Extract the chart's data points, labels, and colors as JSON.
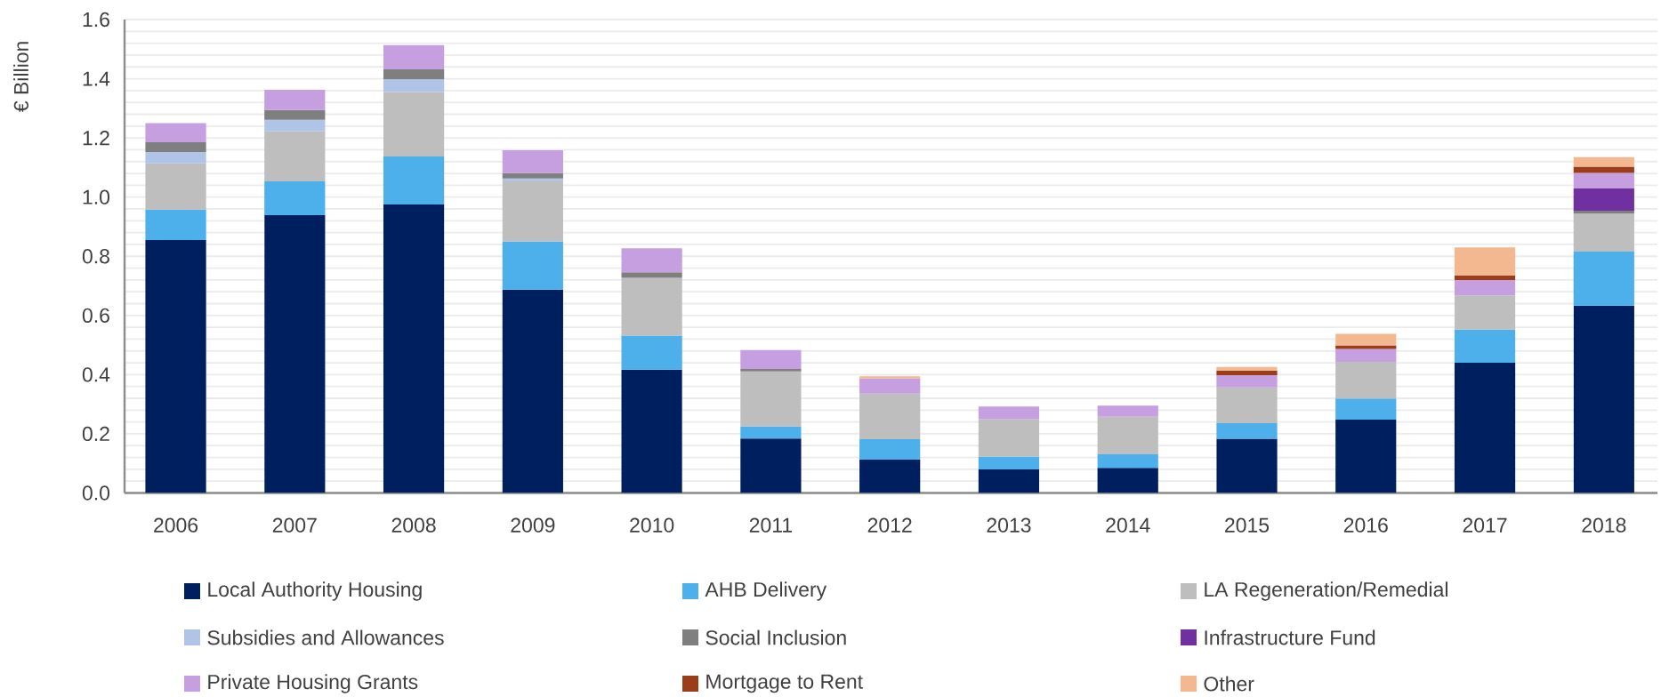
{
  "chart_data": {
    "type": "bar",
    "stacked": true,
    "ylabel": "€ Billion",
    "categories": [
      "2006",
      "2007",
      "2008",
      "2009",
      "2010",
      "2011",
      "2012",
      "2013",
      "2014",
      "2015",
      "2016",
      "2017",
      "2018"
    ],
    "series": [
      {
        "name": "Local Authority Housing",
        "color": "#001f5f",
        "values": [
          0.855,
          0.939,
          0.975,
          0.687,
          0.417,
          0.184,
          0.113,
          0.08,
          0.085,
          0.183,
          0.248,
          0.44,
          0.633
        ]
      },
      {
        "name": "AHB Delivery",
        "color": "#4db0ea",
        "values": [
          0.103,
          0.114,
          0.162,
          0.163,
          0.115,
          0.041,
          0.069,
          0.043,
          0.046,
          0.053,
          0.071,
          0.112,
          0.183
        ]
      },
      {
        "name": "LA Regeneration/Remedial",
        "color": "#bebebe",
        "values": [
          0.156,
          0.169,
          0.218,
          0.203,
          0.195,
          0.186,
          0.154,
          0.127,
          0.127,
          0.121,
          0.124,
          0.116,
          0.128
        ]
      },
      {
        "name": "Subsidies and Allowances",
        "color": "#afc4e6",
        "values": [
          0.038,
          0.039,
          0.043,
          0.01,
          null,
          null,
          null,
          null,
          null,
          null,
          null,
          null,
          null
        ]
      },
      {
        "name": "Social Inclusion",
        "color": "#7f7f7f",
        "values": [
          0.033,
          0.033,
          0.034,
          0.018,
          0.019,
          0.008,
          null,
          null,
          null,
          null,
          null,
          null,
          0.01
        ]
      },
      {
        "name": "Infrastructure Fund",
        "color": "#7030a0",
        "values": [
          null,
          null,
          null,
          null,
          null,
          null,
          null,
          null,
          null,
          null,
          null,
          null,
          0.075
        ]
      },
      {
        "name": "Private Housing Grants",
        "color": "#c59fe0",
        "values": [
          0.065,
          0.069,
          0.082,
          0.077,
          0.081,
          0.064,
          0.051,
          0.042,
          0.037,
          0.041,
          0.044,
          0.052,
          0.053
        ]
      },
      {
        "name": "Mortgage to Rent",
        "color": "#9c3d1a",
        "values": [
          null,
          null,
          null,
          null,
          null,
          null,
          null,
          null,
          null,
          0.016,
          0.012,
          0.015,
          0.021
        ]
      },
      {
        "name": "Other",
        "color": "#f4b891",
        "values": [
          null,
          null,
          null,
          null,
          null,
          null,
          0.007,
          null,
          null,
          0.012,
          0.039,
          0.095,
          0.032
        ]
      }
    ],
    "ylim": [
      0,
      1.6
    ],
    "yticks": [
      {
        "value": 0,
        "label": "0.0"
      },
      0.2,
      0.4,
      0.6,
      0.8,
      {
        "value": 1,
        "label": "1.0"
      },
      1.2,
      1.4,
      1.6
    ],
    "grid": "y",
    "legend": "bottom"
  }
}
